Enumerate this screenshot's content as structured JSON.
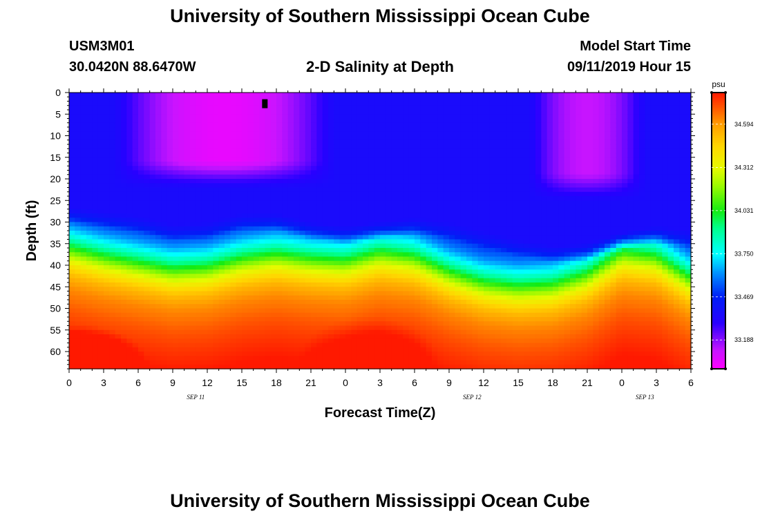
{
  "header": {
    "title": "University of Southern Mississippi Ocean Cube",
    "station_id": "USM3M01",
    "coordinates": "30.0420N 88.6470W",
    "subtitle": "2-D Salinity at Depth",
    "model_start_label": "Model Start Time",
    "model_start_value": "09/11/2019 Hour 15"
  },
  "footer": {
    "title": "University of Southern Mississippi Ocean Cube"
  },
  "chart_data": {
    "type": "heatmap",
    "title": "2-D Salinity at Depth",
    "xlabel": "Forecast Time(Z)",
    "ylabel": "Depth (ft)",
    "x_tick_labels": [
      "0",
      "3",
      "6",
      "9",
      "12",
      "15",
      "18",
      "21",
      "0",
      "3",
      "6",
      "9",
      "12",
      "15",
      "18",
      "21",
      "0",
      "3",
      "6"
    ],
    "x_range_hours": [
      0,
      54
    ],
    "date_labels": [
      {
        "text": "SEP 11",
        "hour": 11
      },
      {
        "text": "SEP 12",
        "hour": 35
      },
      {
        "text": "SEP 13",
        "hour": 50
      }
    ],
    "y_tick_labels": [
      "0",
      "5",
      "10",
      "15",
      "20",
      "25",
      "30",
      "35",
      "40",
      "45",
      "50",
      "55",
      "60"
    ],
    "y_range_ft": [
      0,
      64
    ],
    "colorbar": {
      "unit": "psu",
      "min": 33.0,
      "max": 34.8,
      "tick_values": [
        34.594,
        34.312,
        34.031,
        33.75,
        33.469,
        33.188
      ],
      "tick_labels": [
        "34.594",
        "34.312",
        "34.031",
        "33.750",
        "33.469",
        "33.188"
      ]
    },
    "marker": {
      "hour": 17,
      "depth_ft": 2.5
    },
    "surface_layer_bottom_ft": [
      {
        "hour": 0,
        "depth": 26.5
      },
      {
        "hour": 3,
        "depth": 27.5
      },
      {
        "hour": 6,
        "depth": 28.5
      },
      {
        "hour": 9,
        "depth": 30.5
      },
      {
        "hour": 12,
        "depth": 30
      },
      {
        "hour": 15,
        "depth": 28
      },
      {
        "hour": 18,
        "depth": 28
      },
      {
        "hour": 21,
        "depth": 30
      },
      {
        "hour": 24,
        "depth": 31
      },
      {
        "hour": 27,
        "depth": 30
      },
      {
        "hour": 30,
        "depth": 29
      },
      {
        "hour": 33,
        "depth": 30
      },
      {
        "hour": 36,
        "depth": 32
      },
      {
        "hour": 39,
        "depth": 34
      },
      {
        "hour": 42,
        "depth": 35.5
      },
      {
        "hour": 45,
        "depth": 35
      },
      {
        "hour": 48,
        "depth": 32.5
      },
      {
        "hour": 51,
        "depth": 31
      },
      {
        "hour": 54,
        "depth": 32
      }
    ],
    "thermocline_mid_ft": [
      {
        "hour": 0,
        "depth": 36
      },
      {
        "hour": 3,
        "depth": 38
      },
      {
        "hour": 6,
        "depth": 39.5
      },
      {
        "hour": 9,
        "depth": 41
      },
      {
        "hour": 12,
        "depth": 40.5
      },
      {
        "hour": 15,
        "depth": 38.5
      },
      {
        "hour": 18,
        "depth": 37.5
      },
      {
        "hour": 21,
        "depth": 38.5
      },
      {
        "hour": 24,
        "depth": 39
      },
      {
        "hour": 27,
        "depth": 37
      },
      {
        "hour": 30,
        "depth": 38
      },
      {
        "hour": 33,
        "depth": 41.5
      },
      {
        "hour": 36,
        "depth": 44
      },
      {
        "hour": 39,
        "depth": 45
      },
      {
        "hour": 42,
        "depth": 44.5
      },
      {
        "hour": 45,
        "depth": 42
      },
      {
        "hour": 48,
        "depth": 37
      },
      {
        "hour": 51,
        "depth": 38
      },
      {
        "hour": 54,
        "depth": 43
      }
    ],
    "surface_peak_regions": [
      {
        "hour_start": 6,
        "hour_end": 21,
        "depth_bottom_ft": 22,
        "value": 33.05
      },
      {
        "hour_start": 42,
        "hour_end": 48,
        "depth_bottom_ft": 25,
        "value": 33.12
      }
    ],
    "deep_peak_regions": [
      {
        "hour": 1,
        "depth_ft": 64,
        "value": 34.75
      },
      {
        "hour": 26,
        "depth_ft": 62,
        "value": 34.62
      }
    ]
  }
}
